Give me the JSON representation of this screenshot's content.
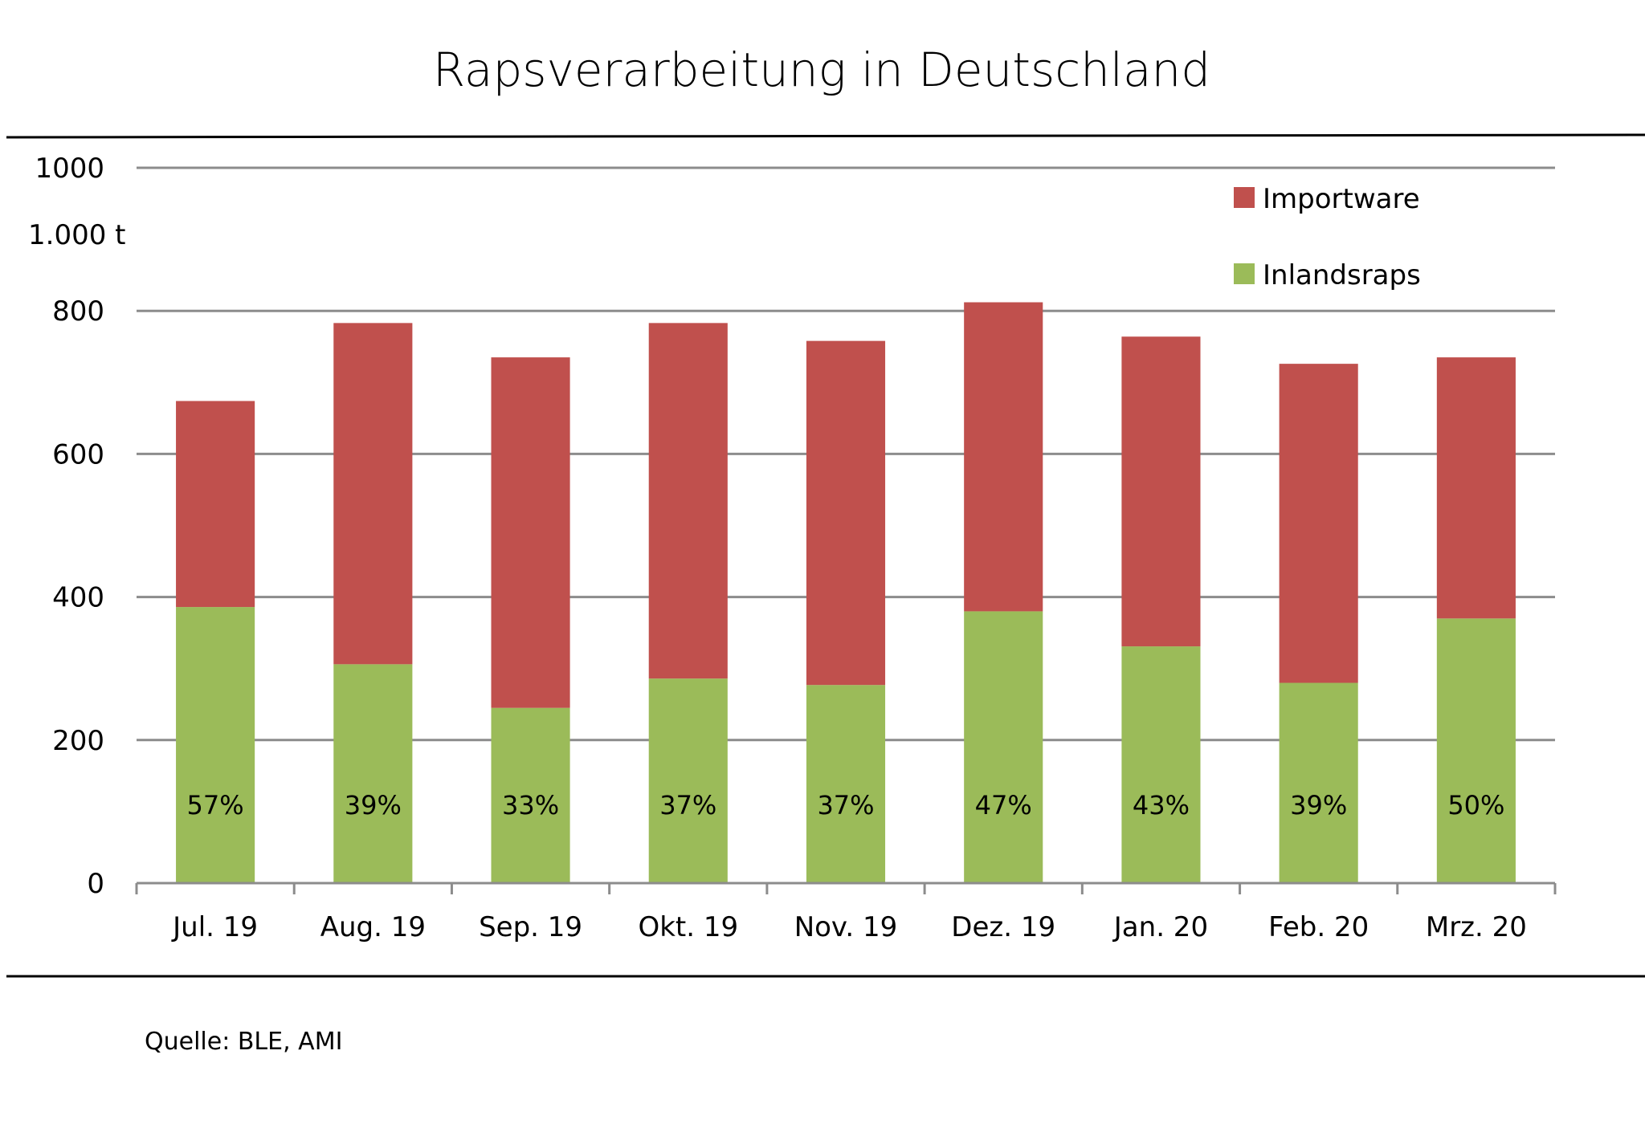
{
  "chart_data": {
    "type": "bar",
    "stacked": true,
    "title": "Rapsverarbeitung in Deutschland",
    "ylabel": "1.000 t",
    "xlabel": "",
    "ylim": [
      0,
      1000
    ],
    "yticks": [
      "0",
      "200",
      "400",
      "600",
      "800",
      "1000"
    ],
    "ytick_values": [
      0,
      200,
      400,
      600,
      800,
      1000
    ],
    "grid": true,
    "categories": [
      "Jul. 19",
      "Aug. 19",
      "Sep. 19",
      "Okt. 19",
      "Nov. 19",
      "Dez. 19",
      "Jan. 20",
      "Feb. 20",
      "Mrz. 20"
    ],
    "series": [
      {
        "name": "Inlandsraps",
        "color": "#9bbb59",
        "values": [
          386,
          306,
          245,
          286,
          277,
          380,
          331,
          280,
          370
        ]
      },
      {
        "name": "Importware",
        "color": "#c0504d",
        "values": [
          288,
          477,
          490,
          497,
          481,
          432,
          433,
          446,
          365
        ]
      }
    ],
    "data_labels": [
      "57%",
      "39%",
      "33%",
      "37%",
      "37%",
      "47%",
      "43%",
      "39%",
      "50%"
    ],
    "legend": {
      "position": "top-right",
      "entries": [
        "Importware",
        "Inlandsraps"
      ]
    },
    "source": "Quelle: BLE, AMI"
  }
}
